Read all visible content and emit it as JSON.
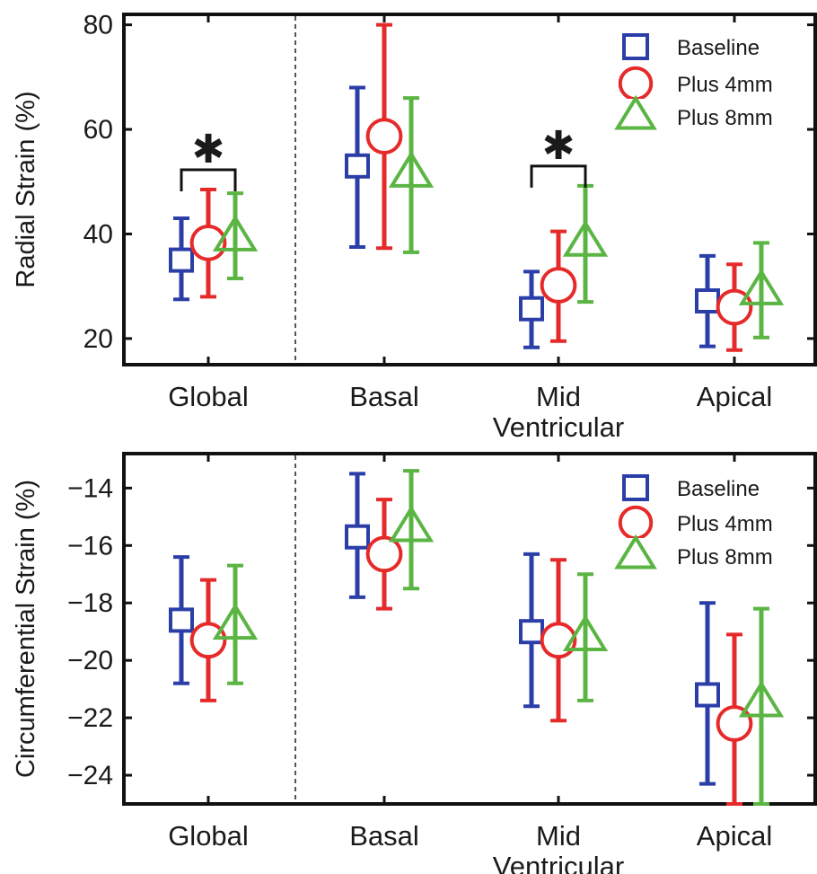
{
  "chart_data": [
    {
      "type": "scatter",
      "subtype": "error-bar",
      "ylabel": "Radial Strain (%)",
      "categories": [
        [
          "Global"
        ],
        [
          "Basal"
        ],
        [
          "Mid",
          "Ventricular"
        ],
        [
          "Apical"
        ]
      ],
      "ylim": [
        15,
        82
      ],
      "yticks": [
        20,
        40,
        60,
        80
      ],
      "ytick_labels": [
        "20",
        "40",
        "60",
        "80"
      ],
      "divider_after_category": 0,
      "legend_position": "top-right",
      "series": [
        {
          "name": "Baseline",
          "marker": "square",
          "color": "#2b3ea8",
          "mean": [
            35,
            53,
            25.7,
            27.2
          ],
          "lower": [
            27.5,
            37.5,
            18.3,
            18.5
          ],
          "upper": [
            43,
            68,
            32.8,
            35.8
          ]
        },
        {
          "name": "Plus 4mm",
          "marker": "circle",
          "color": "#e62a2a",
          "mean": [
            38.3,
            58.7,
            30.2,
            26
          ],
          "lower": [
            28,
            37.3,
            19.5,
            17.8
          ],
          "upper": [
            48.5,
            80,
            40.5,
            34.2
          ]
        },
        {
          "name": "Plus 8mm",
          "marker": "triangle",
          "color": "#5ab543",
          "mean": [
            39.3,
            51.5,
            38.3,
            29
          ],
          "lower": [
            31.5,
            36.5,
            27,
            20.2
          ],
          "upper": [
            47.8,
            66,
            49.2,
            38.3
          ]
        }
      ],
      "significance": [
        {
          "category_index": 0,
          "from_series": 0,
          "to_series": 2,
          "symbol": "✱"
        },
        {
          "category_index": 2,
          "from_series": 0,
          "to_series": 2,
          "symbol": "✱"
        }
      ]
    },
    {
      "type": "scatter",
      "subtype": "error-bar",
      "ylabel": "Circumferential Strain (%)",
      "categories": [
        [
          "Global"
        ],
        [
          "Basal"
        ],
        [
          "Mid",
          "Ventricular"
        ],
        [
          "Apical"
        ]
      ],
      "ylim": [
        -25,
        -12.8
      ],
      "yticks": [
        -24,
        -22,
        -20,
        -18,
        -16,
        -14
      ],
      "ytick_labels": [
        "−24",
        "−22",
        "−20",
        "−18",
        "−16",
        "−14"
      ],
      "divider_after_category": 0,
      "legend_position": "top-right",
      "series": [
        {
          "name": "Baseline",
          "marker": "square",
          "color": "#2b3ea8",
          "mean": [
            -18.6,
            -15.7,
            -19,
            -21.2
          ],
          "lower": [
            -20.8,
            -17.8,
            -21.6,
            -24.3
          ],
          "upper": [
            -16.4,
            -13.5,
            -16.3,
            -18
          ]
        },
        {
          "name": "Plus 4mm",
          "marker": "circle",
          "color": "#e62a2a",
          "mean": [
            -19.3,
            -16.3,
            -19.3,
            -22.2
          ],
          "lower": [
            -21.4,
            -18.2,
            -22.1,
            -25
          ],
          "upper": [
            -17.2,
            -14.4,
            -16.5,
            -19.1
          ]
        },
        {
          "name": "Plus 8mm",
          "marker": "triangle",
          "color": "#5ab543",
          "mean": [
            -18.8,
            -15.4,
            -19.2,
            -21.5
          ],
          "lower": [
            -20.8,
            -17.5,
            -21.4,
            -25
          ],
          "upper": [
            -16.7,
            -13.4,
            -17,
            -18.2
          ]
        }
      ],
      "significance": []
    }
  ]
}
